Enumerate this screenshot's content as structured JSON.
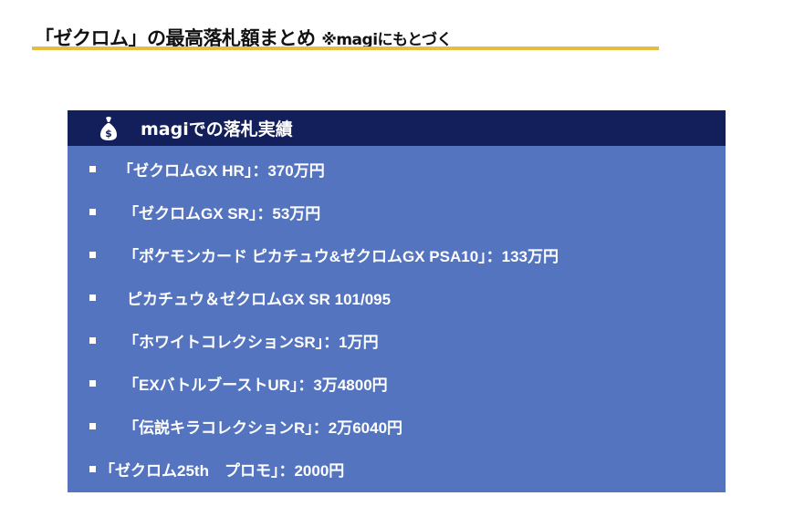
{
  "title": {
    "main": "「ゼクロム」の最高落札額まとめ",
    "note": "※magiにもとづく"
  },
  "panel": {
    "header": "magiでの落札実績",
    "icon": "money-bag-icon",
    "items": [
      {
        "text": "「ゼクロムGX HR」：370万円",
        "gap": 24
      },
      {
        "text": "「ゼクロムGX SR」：53万円",
        "gap": 30
      },
      {
        "text": "「ポケモンカード ピカチュウ&ゼクロムGX PSA10」：133万円",
        "gap": 30
      },
      {
        "text": "ピカチュウ＆ゼクロムGX SR 101/095",
        "gap": 34
      },
      {
        "text": "「ホワイトコレクションSR」：1万円",
        "gap": 30
      },
      {
        "text": "「EXバトルブーストUR」：3万4800円",
        "gap": 30
      },
      {
        "text": "「伝説キラコレクションR」：2万6040円",
        "gap": 30
      },
      {
        "text": "「ゼクロム25th　プロモ」：2000円",
        "gap": 4
      }
    ]
  },
  "colors": {
    "accent": "#e8bc3c",
    "header": "#131f5b",
    "panel": "#5474c0"
  }
}
